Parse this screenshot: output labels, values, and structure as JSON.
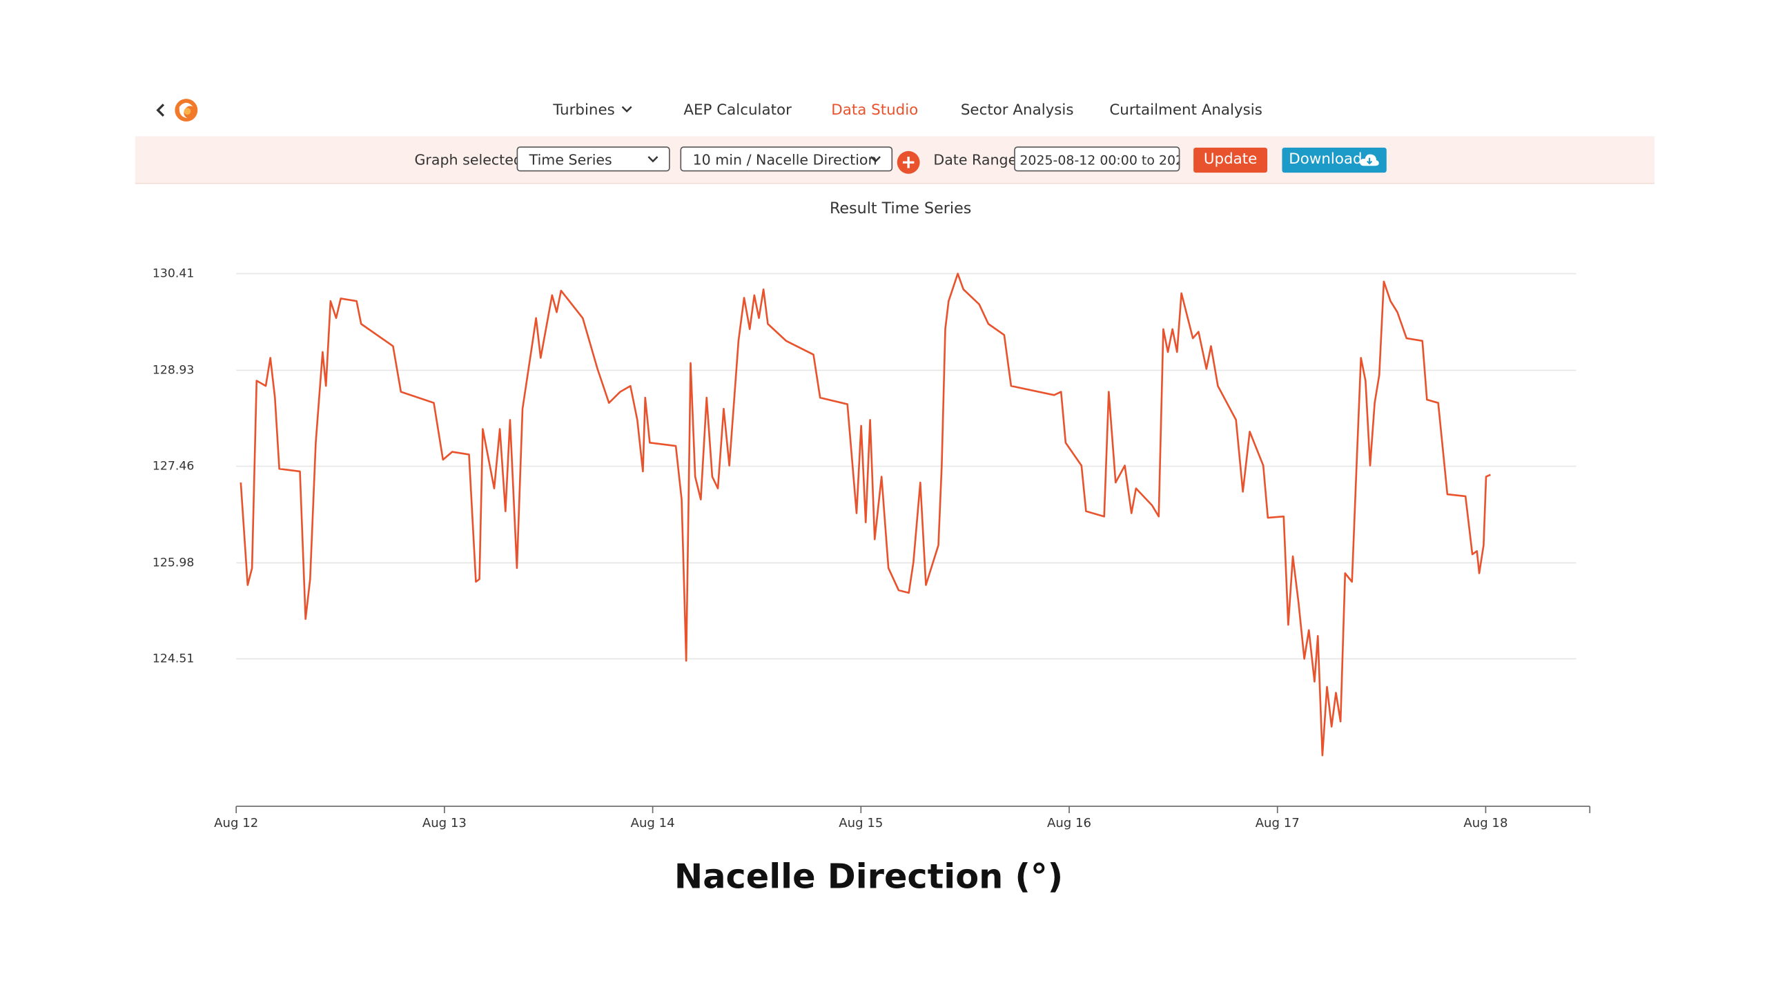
{
  "nav": {
    "items": [
      "Turbines",
      "AEP Calculator",
      "Data Studio",
      "Sector Analysis",
      "Curtailment Analysis"
    ]
  },
  "toolbar": {
    "graph_label": "Graph selected:",
    "graph_value": "Time Series",
    "metric_value": "10 min / Nacelle Direction",
    "date_label": "Date Range:",
    "date_value": "2025-08-12 00:00 to 202",
    "update": "Update",
    "download": "Download"
  },
  "chart_data": {
    "type": "line",
    "title": "Result Time Series",
    "caption": "Nacelle Direction (°)",
    "color": "#e8532d",
    "grid": true,
    "x": [
      12.022,
      12.055,
      12.076,
      12.098,
      12.142,
      12.164,
      12.186,
      12.207,
      12.306,
      12.333,
      12.355,
      12.382,
      12.415,
      12.431,
      12.453,
      12.48,
      12.502,
      12.578,
      12.6,
      12.753,
      12.791,
      12.949,
      12.993,
      13.037,
      13.118,
      13.151,
      13.168,
      13.184,
      13.239,
      13.266,
      13.293,
      13.315,
      13.348,
      13.375,
      13.424,
      13.44,
      13.462,
      13.517,
      13.539,
      13.56,
      13.664,
      13.735,
      13.79,
      13.844,
      13.893,
      13.926,
      13.953,
      13.964,
      13.986,
      14.111,
      14.139,
      14.161,
      14.182,
      14.204,
      14.231,
      14.259,
      14.286,
      14.313,
      14.341,
      14.368,
      14.412,
      14.439,
      14.466,
      14.488,
      14.51,
      14.532,
      14.553,
      14.641,
      14.772,
      14.804,
      14.935,
      14.979,
      15.001,
      15.023,
      15.044,
      15.066,
      15.099,
      15.132,
      15.181,
      15.23,
      15.252,
      15.285,
      15.312,
      15.372,
      15.388,
      15.405,
      15.421,
      15.465,
      15.492,
      15.568,
      15.612,
      15.688,
      15.721,
      15.928,
      15.961,
      15.983,
      16.059,
      16.081,
      16.168,
      16.19,
      16.223,
      16.267,
      16.299,
      16.321,
      16.398,
      16.43,
      16.452,
      16.474,
      16.496,
      16.518,
      16.539,
      16.594,
      16.621,
      16.659,
      16.681,
      16.714,
      16.801,
      16.834,
      16.867,
      16.932,
      16.954,
      17.03,
      17.052,
      17.074,
      17.101,
      17.129,
      17.151,
      17.178,
      17.194,
      17.216,
      17.238,
      17.26,
      17.281,
      17.303,
      17.325,
      17.358,
      17.38,
      17.401,
      17.423,
      17.445,
      17.467,
      17.489,
      17.511,
      17.543,
      17.576,
      17.62,
      17.696,
      17.718,
      17.772,
      17.816,
      17.903,
      17.936,
      17.958,
      17.969,
      17.99,
      18.002,
      18.023
    ],
    "values": [
      127.21,
      125.64,
      125.9,
      128.77,
      128.69,
      129.12,
      128.51,
      127.42,
      127.38,
      125.12,
      125.73,
      127.82,
      129.21,
      128.69,
      129.99,
      129.73,
      130.03,
      129.99,
      129.64,
      129.3,
      128.6,
      128.43,
      127.56,
      127.68,
      127.64,
      125.69,
      125.73,
      128.03,
      127.12,
      128.03,
      126.77,
      128.17,
      125.9,
      128.34,
      129.38,
      129.73,
      129.12,
      130.08,
      129.82,
      130.15,
      129.73,
      128.95,
      128.43,
      128.6,
      128.69,
      128.17,
      127.38,
      128.51,
      127.82,
      127.77,
      126.95,
      124.48,
      129.04,
      127.3,
      126.95,
      128.51,
      127.3,
      127.12,
      128.34,
      127.47,
      129.38,
      130.04,
      129.56,
      130.08,
      129.73,
      130.17,
      129.64,
      129.38,
      129.17,
      128.51,
      128.41,
      126.74,
      128.08,
      126.6,
      128.17,
      126.34,
      127.3,
      125.9,
      125.56,
      125.52,
      125.99,
      127.21,
      125.64,
      126.25,
      127.47,
      129.56,
      129.99,
      130.41,
      130.17,
      129.94,
      129.64,
      129.47,
      128.69,
      128.55,
      128.6,
      127.82,
      127.47,
      126.77,
      126.69,
      128.6,
      127.21,
      127.47,
      126.74,
      127.12,
      126.86,
      126.69,
      129.56,
      129.21,
      129.56,
      129.21,
      130.11,
      129.42,
      129.52,
      128.95,
      129.3,
      128.69,
      128.17,
      127.07,
      127.99,
      127.47,
      126.67,
      126.69,
      125.03,
      126.08,
      125.38,
      124.51,
      124.95,
      124.16,
      124.86,
      123.03,
      124.08,
      123.47,
      123.99,
      123.55,
      125.82,
      125.69,
      127.47,
      129.12,
      128.77,
      127.47,
      128.43,
      128.86,
      130.29,
      129.99,
      129.82,
      129.42,
      129.38,
      128.48,
      128.43,
      127.03,
      127,
      126.11,
      126.16,
      125.82,
      126.25,
      127.3,
      127.33
    ],
    "xlim": [
      12,
      18.5
    ],
    "ylim": [
      122.25,
      130.5
    ],
    "xticks": [
      {
        "value": 12,
        "label": "Aug 12"
      },
      {
        "value": 13,
        "label": "Aug 13"
      },
      {
        "value": 14,
        "label": "Aug 14"
      },
      {
        "value": 15,
        "label": "Aug 15"
      },
      {
        "value": 16,
        "label": "Aug 16"
      },
      {
        "value": 17,
        "label": "Aug 17"
      },
      {
        "value": 18,
        "label": "Aug 18"
      }
    ],
    "yticks": [
      124.51,
      125.98,
      127.46,
      128.93,
      130.41
    ]
  }
}
